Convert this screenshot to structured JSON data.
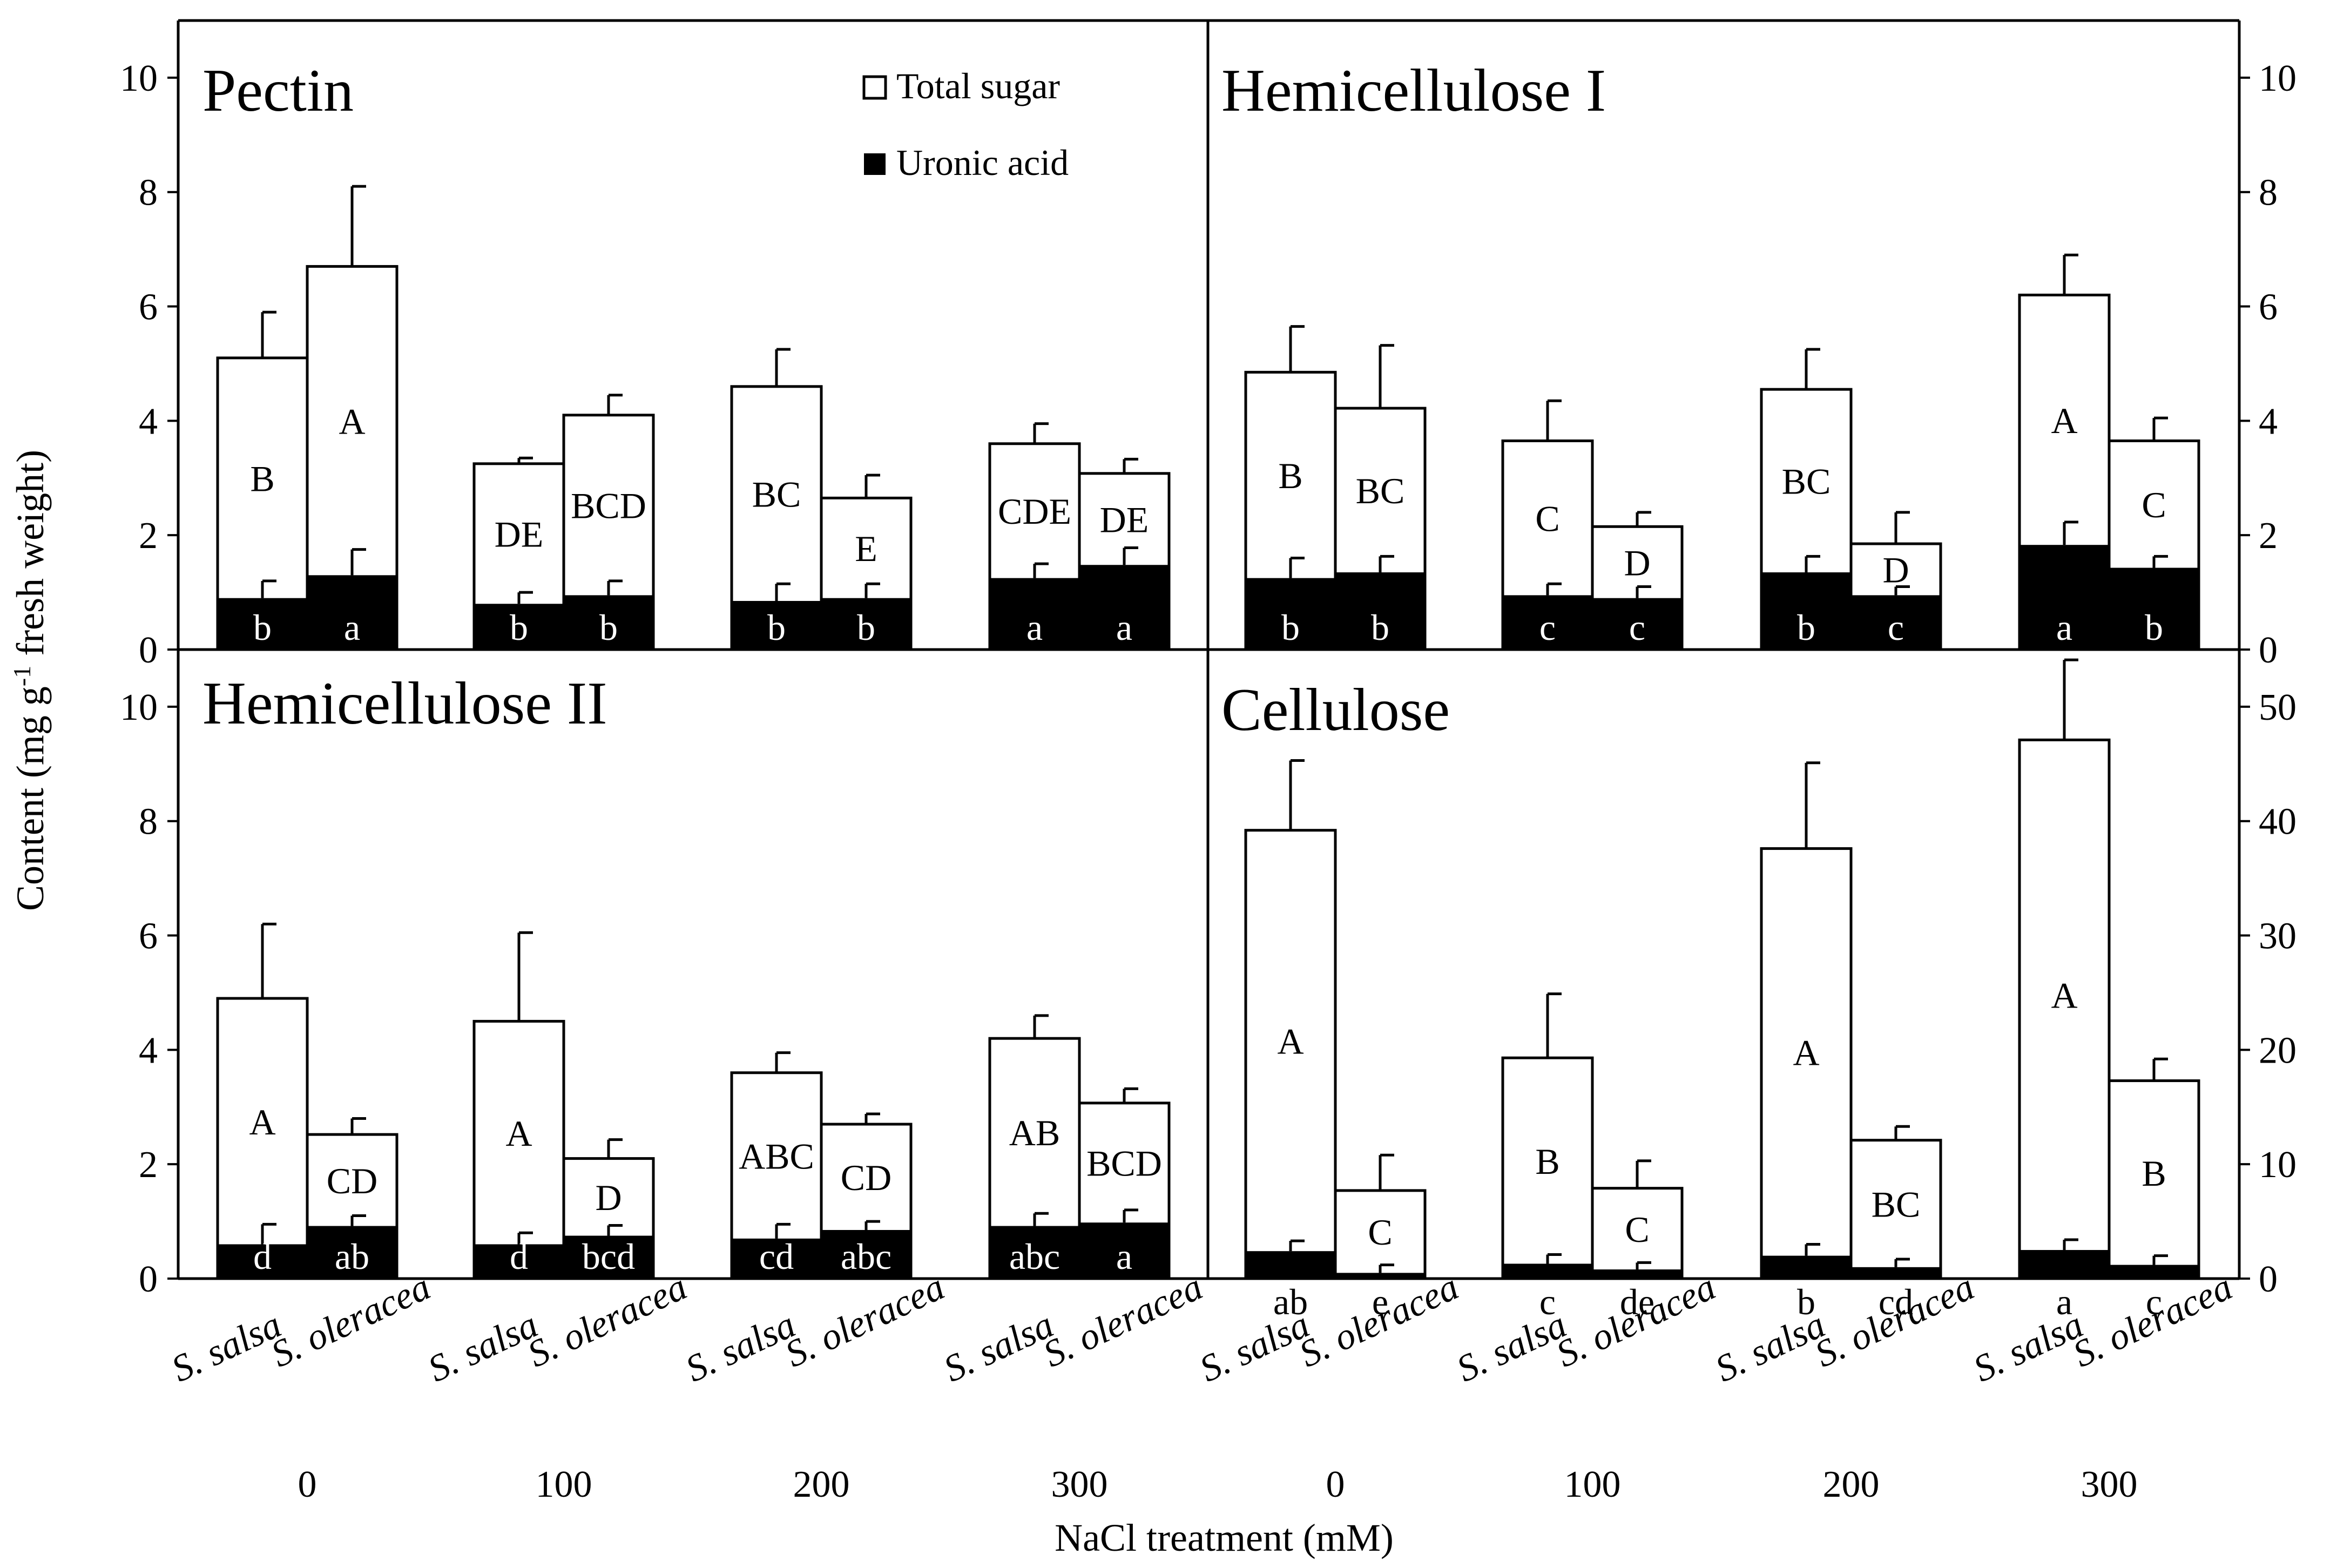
{
  "chart_data": {
    "type": "bar",
    "stacked": true,
    "ylabel": "Content (mg g-1 fresh weight)",
    "xlabel": "NaCl treatment (mM)",
    "legend": {
      "placement": "top-right of Pectin panel",
      "entries": [
        {
          "name": "Total sugar",
          "fill": "#ffffff"
        },
        {
          "name": "Uronic acid",
          "fill": "#000000"
        }
      ]
    },
    "species": [
      "S. salsa",
      "S. oleracea"
    ],
    "treatments": [
      "0",
      "100",
      "200",
      "300"
    ],
    "panels": [
      {
        "title": "Pectin",
        "ylim": [
          0,
          10
        ],
        "yticks": [
          "0",
          "2",
          "4",
          "6",
          "8",
          "10"
        ],
        "total": [
          5.1,
          6.7,
          3.25,
          4.1,
          4.6,
          2.65,
          3.6,
          3.08
        ],
        "total_err": [
          0.8,
          1.4,
          0.1,
          0.35,
          0.65,
          0.4,
          0.35,
          0.25
        ],
        "uronic": [
          0.9,
          1.3,
          0.8,
          0.95,
          0.85,
          0.9,
          1.25,
          1.48
        ],
        "uronic_err": [
          0.3,
          0.45,
          0.2,
          0.25,
          0.3,
          0.25,
          0.25,
          0.3
        ],
        "total_labels": [
          "B",
          "A",
          "DE",
          "BCD",
          "BC",
          "E",
          "CDE",
          "DE"
        ],
        "uronic_labels": [
          "b",
          "a",
          "b",
          "b",
          "b",
          "b",
          "a",
          "a"
        ],
        "uronic_label_pos": "inside"
      },
      {
        "title": "Hemicellulose I",
        "ylim": [
          0,
          10
        ],
        "yticks": [
          "0",
          "2",
          "4",
          "6",
          "8",
          "10"
        ],
        "total": [
          4.85,
          4.22,
          3.65,
          2.15,
          4.55,
          1.85,
          6.2,
          3.65
        ],
        "total_err": [
          0.8,
          1.1,
          0.7,
          0.25,
          0.7,
          0.55,
          0.7,
          0.4
        ],
        "uronic": [
          1.25,
          1.35,
          0.95,
          0.9,
          1.35,
          0.95,
          1.83,
          1.43
        ],
        "uronic_err": [
          0.35,
          0.28,
          0.2,
          0.2,
          0.28,
          0.15,
          0.4,
          0.2
        ],
        "total_labels": [
          "B",
          "BC",
          "C",
          "D",
          "BC",
          "D",
          "A",
          "C"
        ],
        "uronic_labels": [
          "b",
          "b",
          "c",
          "c",
          "b",
          "c",
          "a",
          "b"
        ],
        "uronic_label_pos": "inside"
      },
      {
        "title": "Hemicellulose II",
        "ylim": [
          0,
          10
        ],
        "yticks": [
          "0",
          "2",
          "4",
          "6",
          "8",
          "10"
        ],
        "total": [
          4.9,
          2.52,
          4.5,
          2.1,
          3.6,
          2.7,
          4.2,
          3.07
        ],
        "total_err": [
          1.3,
          0.28,
          1.55,
          0.33,
          0.35,
          0.18,
          0.4,
          0.25
        ],
        "uronic": [
          0.6,
          0.92,
          0.6,
          0.75,
          0.7,
          0.85,
          0.92,
          0.98
        ],
        "uronic_err": [
          0.35,
          0.18,
          0.2,
          0.18,
          0.25,
          0.15,
          0.22,
          0.22
        ],
        "total_labels": [
          "A",
          "CD",
          "A",
          "D",
          "ABC",
          "CD",
          "AB",
          "BCD"
        ],
        "uronic_labels": [
          "d",
          "ab",
          "d",
          "bcd",
          "cd",
          "abc",
          "abc",
          "a"
        ],
        "uronic_label_pos": "inside"
      },
      {
        "title": "Cellulose",
        "ylim": [
          0,
          55
        ],
        "yticks": [
          "0",
          "10",
          "20",
          "30",
          "40",
          "50"
        ],
        "total": [
          39.2,
          7.7,
          19.3,
          7.9,
          37.6,
          12.1,
          47.1,
          17.3
        ],
        "total_err": [
          6.1,
          3.1,
          5.6,
          2.4,
          7.5,
          1.2,
          7.0,
          1.9
        ],
        "uronic": [
          2.4,
          0.5,
          1.3,
          0.8,
          2.0,
          1.0,
          2.5,
          1.2
        ],
        "uronic_err": [
          0.9,
          0.7,
          0.8,
          0.6,
          1.0,
          0.7,
          0.9,
          0.8
        ],
        "total_labels": [
          "A",
          "C",
          "B",
          "C",
          "A",
          "BC",
          "A",
          "B"
        ],
        "uronic_labels": [
          "ab",
          "e",
          "c",
          "de",
          "b",
          "cd",
          "a",
          "c"
        ],
        "uronic_label_pos": "below"
      }
    ]
  }
}
